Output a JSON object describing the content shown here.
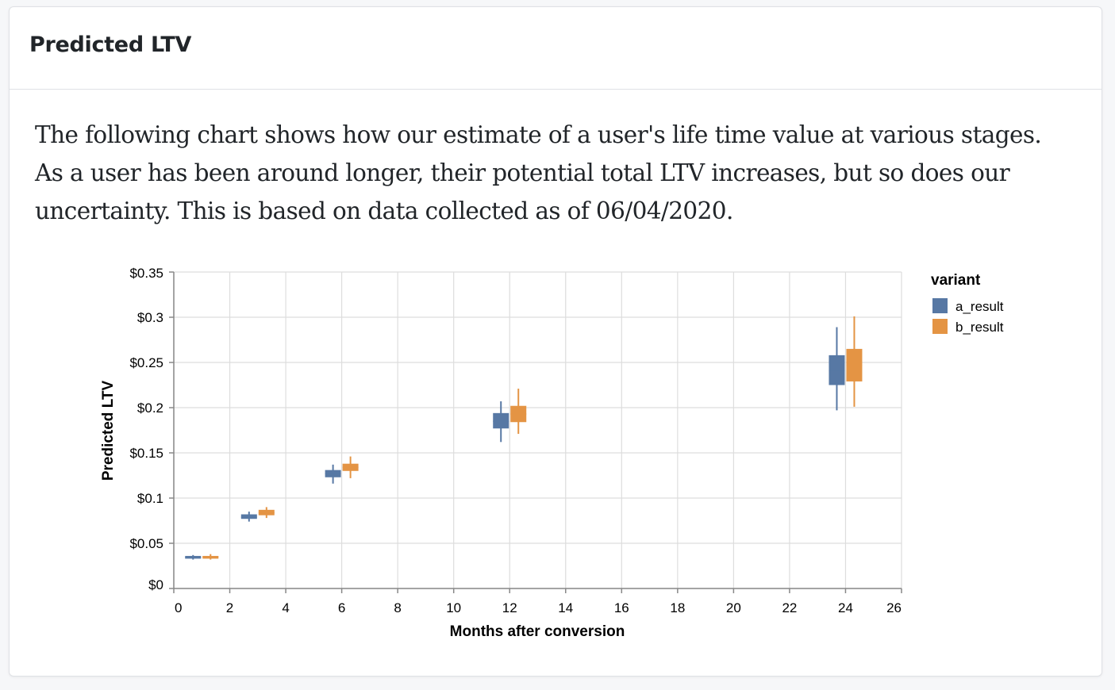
{
  "card": {
    "title": "Predicted LTV",
    "description": "The following chart shows how our estimate of a user's life time value at various stages. As a user has been around longer, their potential total LTV increases, but so does our uncertainty. This is based on data collected as of 06/04/2020."
  },
  "colors": {
    "a_result": "#5778a4",
    "b_result": "#e49444",
    "grid": "#dddddd",
    "axis": "#888888"
  },
  "chart_data": {
    "type": "boxplot",
    "title": "",
    "xlabel": "Months after conversion",
    "ylabel": "Predicted LTV",
    "xlim": [
      0,
      26
    ],
    "ylim": [
      0,
      0.35
    ],
    "x_ticks": [
      0,
      2,
      4,
      6,
      8,
      10,
      12,
      14,
      16,
      18,
      20,
      22,
      24,
      26
    ],
    "y_ticks": [
      0,
      0.05,
      0.1,
      0.15,
      0.2,
      0.25,
      0.3,
      0.35
    ],
    "y_tick_labels": [
      "$0",
      "$0.05",
      "$0.1",
      "$0.15",
      "$0.2",
      "$0.25",
      "$0.3",
      "$0.35"
    ],
    "grid": true,
    "legend": {
      "title": "variant",
      "position": "top-right"
    },
    "series": [
      {
        "name": "a_result",
        "points": [
          {
            "month": 1,
            "whisker_low": 0.032,
            "q1": 0.033,
            "median": 0.034,
            "q3": 0.036,
            "whisker_high": 0.037
          },
          {
            "month": 3,
            "whisker_low": 0.074,
            "q1": 0.077,
            "median": 0.079,
            "q3": 0.082,
            "whisker_high": 0.085
          },
          {
            "month": 6,
            "whisker_low": 0.116,
            "q1": 0.123,
            "median": 0.127,
            "q3": 0.131,
            "whisker_high": 0.137
          },
          {
            "month": 12,
            "whisker_low": 0.162,
            "q1": 0.177,
            "median": 0.185,
            "q3": 0.194,
            "whisker_high": 0.207
          },
          {
            "month": 24,
            "whisker_low": 0.197,
            "q1": 0.225,
            "median": 0.241,
            "q3": 0.258,
            "whisker_high": 0.289
          }
        ]
      },
      {
        "name": "b_result",
        "points": [
          {
            "month": 1,
            "whisker_low": 0.032,
            "q1": 0.033,
            "median": 0.035,
            "q3": 0.036,
            "whisker_high": 0.038
          },
          {
            "month": 3,
            "whisker_low": 0.078,
            "q1": 0.081,
            "median": 0.084,
            "q3": 0.087,
            "whisker_high": 0.09
          },
          {
            "month": 6,
            "whisker_low": 0.122,
            "q1": 0.13,
            "median": 0.134,
            "q3": 0.138,
            "whisker_high": 0.146
          },
          {
            "month": 12,
            "whisker_low": 0.171,
            "q1": 0.184,
            "median": 0.193,
            "q3": 0.202,
            "whisker_high": 0.221
          },
          {
            "month": 24,
            "whisker_low": 0.201,
            "q1": 0.229,
            "median": 0.247,
            "q3": 0.265,
            "whisker_high": 0.301
          }
        ]
      }
    ]
  }
}
